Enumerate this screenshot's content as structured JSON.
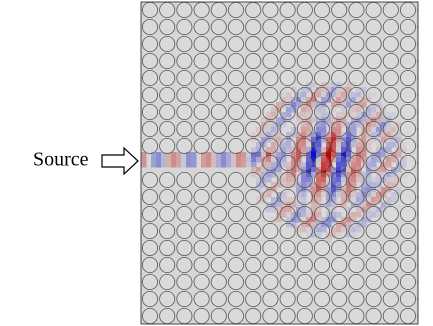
{
  "label": "Source"
}
